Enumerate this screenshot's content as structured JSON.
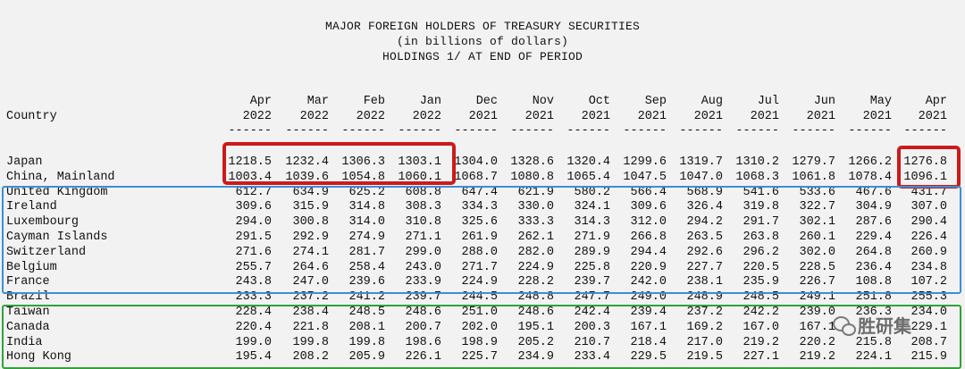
{
  "title_lines": [
    "MAJOR FOREIGN HOLDERS OF TREASURY SECURITIES",
    "(in billions of dollars)",
    "HOLDINGS 1/ AT END OF PERIOD"
  ],
  "country_header": "Country",
  "columns": [
    {
      "month": "Apr",
      "year": "2022"
    },
    {
      "month": "Mar",
      "year": "2022"
    },
    {
      "month": "Feb",
      "year": "2022"
    },
    {
      "month": "Jan",
      "year": "2022"
    },
    {
      "month": "Dec",
      "year": "2021"
    },
    {
      "month": "Nov",
      "year": "2021"
    },
    {
      "month": "Oct",
      "year": "2021"
    },
    {
      "month": "Sep",
      "year": "2021"
    },
    {
      "month": "Aug",
      "year": "2021"
    },
    {
      "month": "Jul",
      "year": "2021"
    },
    {
      "month": "Jun",
      "year": "2021"
    },
    {
      "month": "May",
      "year": "2021"
    },
    {
      "month": "Apr",
      "year": "2021"
    }
  ],
  "separator": "------",
  "rows": [
    {
      "country": "Japan",
      "values": [
        "1218.5",
        "1232.4",
        "1306.3",
        "1303.1",
        "1304.0",
        "1328.6",
        "1320.4",
        "1299.6",
        "1319.7",
        "1310.2",
        "1279.7",
        "1266.2",
        "1276.8"
      ]
    },
    {
      "country": "China, Mainland",
      "values": [
        "1003.4",
        "1039.6",
        "1054.8",
        "1060.1",
        "1068.7",
        "1080.8",
        "1065.4",
        "1047.5",
        "1047.0",
        "1068.3",
        "1061.8",
        "1078.4",
        "1096.1"
      ]
    },
    {
      "country": "United Kingdom",
      "values": [
        "612.7",
        "634.9",
        "625.2",
        "608.8",
        "647.4",
        "621.9",
        "580.2",
        "566.4",
        "568.9",
        "541.6",
        "533.6",
        "467.6",
        "431.7"
      ]
    },
    {
      "country": "Ireland",
      "values": [
        "309.6",
        "315.9",
        "314.8",
        "308.3",
        "334.3",
        "330.0",
        "324.1",
        "309.6",
        "326.4",
        "319.8",
        "322.7",
        "304.9",
        "307.0"
      ]
    },
    {
      "country": "Luxembourg",
      "values": [
        "294.0",
        "300.8",
        "314.0",
        "310.8",
        "325.6",
        "333.3",
        "314.3",
        "312.0",
        "294.2",
        "291.7",
        "302.1",
        "287.6",
        "290.4"
      ]
    },
    {
      "country": "Cayman Islands",
      "values": [
        "291.5",
        "292.9",
        "274.9",
        "271.1",
        "261.9",
        "262.1",
        "271.9",
        "266.8",
        "263.5",
        "263.8",
        "260.1",
        "229.4",
        "226.4"
      ]
    },
    {
      "country": "Switzerland",
      "values": [
        "271.6",
        "274.1",
        "281.7",
        "299.0",
        "288.0",
        "282.0",
        "289.9",
        "294.4",
        "292.6",
        "296.2",
        "302.0",
        "264.8",
        "260.9"
      ]
    },
    {
      "country": "Belgium",
      "values": [
        "255.7",
        "264.6",
        "258.4",
        "243.0",
        "271.7",
        "224.9",
        "225.8",
        "220.9",
        "227.7",
        "220.5",
        "228.5",
        "236.4",
        "234.8"
      ]
    },
    {
      "country": "France",
      "values": [
        "243.8",
        "247.0",
        "239.6",
        "233.9",
        "224.9",
        "228.2",
        "239.7",
        "242.0",
        "238.1",
        "235.9",
        "226.7",
        "108.8",
        "107.2"
      ]
    },
    {
      "country": "Brazil",
      "values": [
        "233.3",
        "237.2",
        "241.2",
        "239.7",
        "244.5",
        "248.8",
        "247.7",
        "249.0",
        "248.9",
        "248.5",
        "249.1",
        "251.8",
        "255.3"
      ]
    },
    {
      "country": "Taiwan",
      "values": [
        "228.4",
        "238.4",
        "248.5",
        "248.6",
        "251.0",
        "248.6",
        "242.4",
        "239.4",
        "237.2",
        "242.2",
        "239.0",
        "236.3",
        "234.0"
      ]
    },
    {
      "country": "Canada",
      "values": [
        "220.4",
        "221.8",
        "208.1",
        "200.7",
        "202.0",
        "195.1",
        "200.3",
        "167.1",
        "169.2",
        "167.0",
        "167.1",
        "",
        "229.1"
      ]
    },
    {
      "country": "India",
      "values": [
        "199.0",
        "199.8",
        "199.8",
        "198.6",
        "198.9",
        "205.2",
        "210.7",
        "218.4",
        "217.0",
        "219.2",
        "220.2",
        "215.8",
        "208.7"
      ]
    },
    {
      "country": "Hong Kong",
      "values": [
        "195.4",
        "208.2",
        "205.9",
        "226.1",
        "225.7",
        "234.9",
        "233.4",
        "229.5",
        "219.5",
        "227.1",
        "219.2",
        "224.1",
        "215.9"
      ]
    }
  ],
  "watermark": "胜研集",
  "colors": {
    "red_box": "#cc1a1a",
    "blue_box": "#3a8fd8",
    "green_box": "#2fa33a",
    "background": "#f2f2f2"
  }
}
